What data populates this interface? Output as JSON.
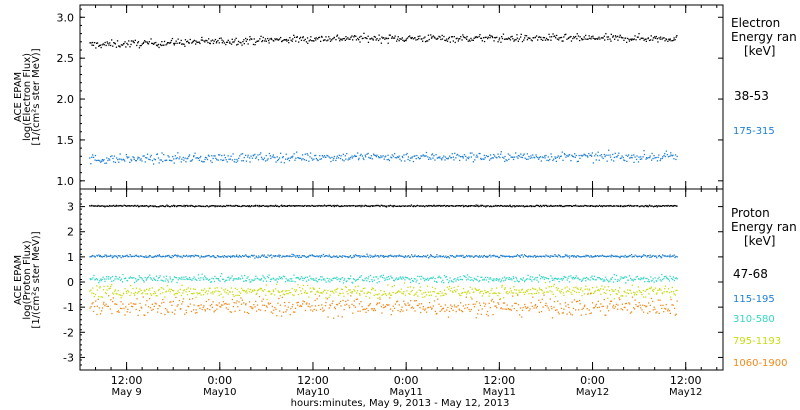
{
  "figure": {
    "xaxis_title": "hours:minutes, May  9, 2013 - May 12, 2013",
    "x_ticks": [
      {
        "t": 0.5,
        "time": "12:00",
        "date": "May 9"
      },
      {
        "t": 1.0,
        "time": "0:00",
        "date": "May10"
      },
      {
        "t": 1.5,
        "time": "12:00",
        "date": "May10"
      },
      {
        "t": 2.0,
        "time": "0:00",
        "date": "May11"
      },
      {
        "t": 2.5,
        "time": "12:00",
        "date": "May11"
      },
      {
        "t": 3.0,
        "time": "0:00",
        "date": "May12"
      },
      {
        "t": 3.5,
        "time": "12:00",
        "date": "May12"
      }
    ]
  },
  "chart_data": [
    {
      "type": "scatter",
      "panel": "electron",
      "ylabel_lines": [
        "ACE EPAM",
        "log(Electron Flux)",
        "[1/(cm²s ster MeV)]"
      ],
      "xlim_days": [
        0.25,
        3.7
      ],
      "ylim": [
        0.9,
        3.15
      ],
      "yticks": [
        1.0,
        1.5,
        2.0,
        2.5,
        3.0
      ],
      "ytick_labels": [
        "1.0",
        "1.5",
        "2.0",
        "2.5",
        "3.0"
      ],
      "legend_title": [
        "Electron",
        "Energy ran",
        "[keV]"
      ],
      "series": [
        {
          "name": "38-53",
          "color": "#000000",
          "approx_level": 2.75,
          "start_level": 2.67,
          "spread": 0.05
        },
        {
          "name": "175-315",
          "color": "#1f7fd0",
          "approx_level": 1.3,
          "start_level": 1.27,
          "spread": 0.06
        }
      ]
    },
    {
      "type": "scatter",
      "panel": "proton",
      "ylabel_lines": [
        "ACE EPAM",
        "log(Proton Flux)",
        "[1/(cm²s ster MeV)]"
      ],
      "xlim_days": [
        0.25,
        3.7
      ],
      "ylim": [
        -3.5,
        3.7
      ],
      "yticks": [
        3,
        2,
        1,
        0,
        -1,
        -2,
        -3
      ],
      "ytick_labels": [
        "3",
        "2",
        "1",
        "0",
        "-1",
        "-2",
        "-3"
      ],
      "legend_title": [
        "Proton",
        "Energy ran",
        "[keV]"
      ],
      "series": [
        {
          "name": "47-68",
          "color": "#000000",
          "approx_level": 3.05,
          "spread": 0.03
        },
        {
          "name": "115-195",
          "color": "#1f7fd0",
          "approx_level": 1.05,
          "spread": 0.06
        },
        {
          "name": "310-580",
          "color": "#33d6c4",
          "approx_level": 0.15,
          "spread": 0.15
        },
        {
          "name": "795-1193",
          "color": "#c8dc10",
          "approx_level": -0.35,
          "spread": 0.25
        },
        {
          "name": "1060-1900",
          "color": "#f08a1a",
          "approx_level": -0.95,
          "spread": 0.4
        }
      ]
    }
  ]
}
